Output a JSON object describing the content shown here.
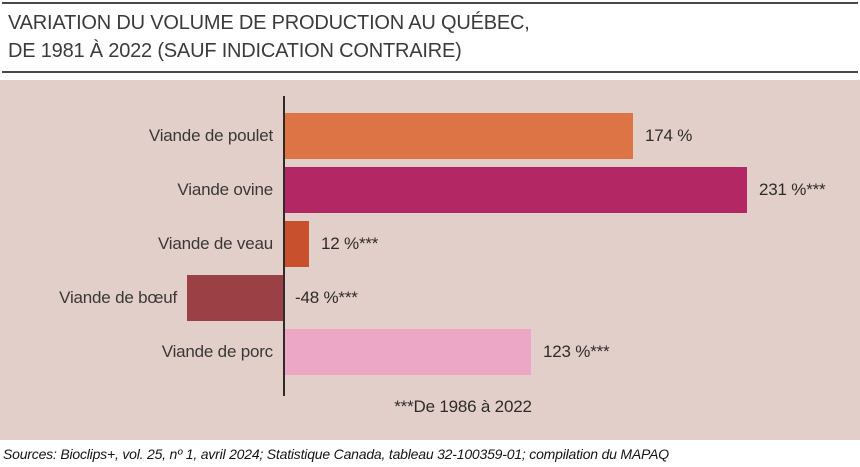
{
  "header": {
    "title_line1": "VARIATION DU VOLUME DE PRODUCTION AU QUÉBEC,",
    "title_line2": "DE 1981 À 2022 (SAUF INDICATION CONTRAIRE)"
  },
  "chart_data": {
    "type": "bar",
    "orientation": "horizontal",
    "title": "Variation du volume de production au Québec, de 1981 à 2022 (sauf indication contraire)",
    "categories": [
      "Viande de poulet",
      "Viande ovine",
      "Viande de veau",
      "Viande de bœuf",
      "Viande de porc"
    ],
    "values": [
      174,
      231,
      12,
      -48,
      123
    ],
    "value_labels": [
      "174 %",
      "231 %***",
      "12 %***",
      "-48 %***",
      "123 %***"
    ],
    "bar_colors": [
      "#dd7446",
      "#b32765",
      "#c8502c",
      "#9b4145",
      "#eca6c6"
    ],
    "unit": "%",
    "xlim": [
      -60,
      260
    ],
    "baseline": 0,
    "grid": false,
    "legend": false,
    "background_color": "#e3cfc9",
    "axis_color": "#2e2b28",
    "footnote": "***De 1986 à 2022"
  },
  "footer": {
    "source": "Sources: Bioclips+, vol. 25, nº 1, avril 2024; Statistique Canada, tableau 32-100359-01; compilation du MAPAQ"
  }
}
